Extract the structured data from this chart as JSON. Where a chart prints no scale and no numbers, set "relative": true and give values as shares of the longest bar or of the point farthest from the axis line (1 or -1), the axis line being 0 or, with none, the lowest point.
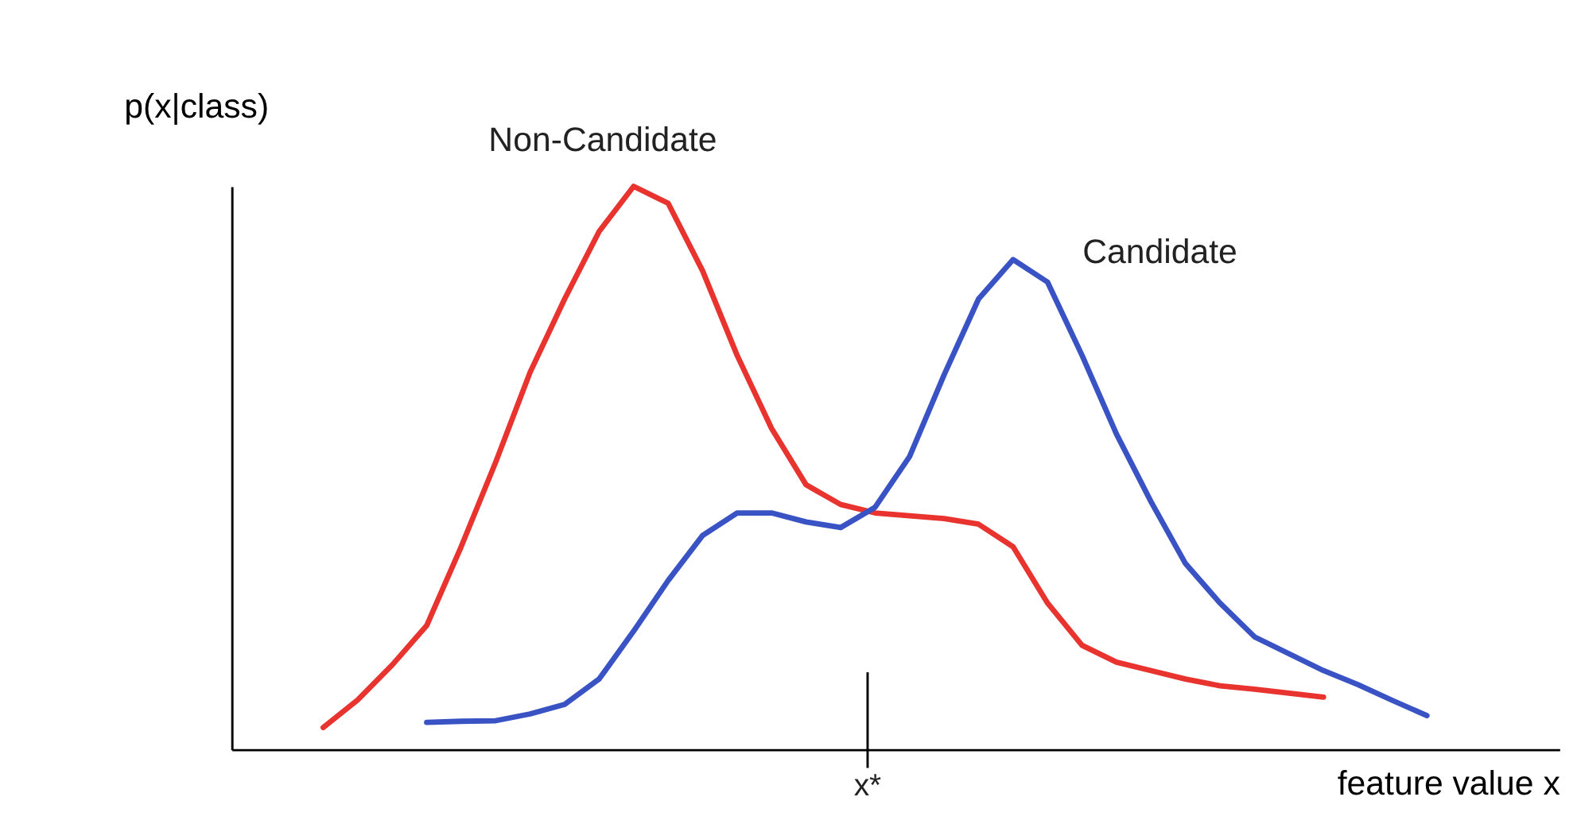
{
  "chart_data": {
    "type": "line",
    "relative": true,
    "xlabel": "feature value x",
    "ylabel": "p(x|class)",
    "categories": [
      null,
      null,
      null,
      null,
      null,
      null,
      null,
      null,
      null,
      null,
      null,
      null,
      null,
      null,
      null,
      null,
      null,
      null,
      null,
      null,
      null,
      null,
      null,
      null,
      null,
      null,
      null,
      null,
      null,
      null,
      null,
      null,
      null
    ],
    "annotations": [
      "x*"
    ],
    "tick_labels": false,
    "grid": false,
    "legend": false,
    "marker": "none",
    "line_style": "solid",
    "series": [
      {
        "name": "Non-Candidate",
        "color": "#e8332f",
        "values": [
          0.039,
          0.088,
          0.15,
          0.22,
          0.36,
          0.51,
          0.67,
          0.8,
          0.92,
          1,
          0.97,
          0.85,
          0.7,
          0.57,
          0.47,
          0.435,
          0.42,
          0.415,
          0.41,
          0.4,
          0.36,
          0.26,
          0.185,
          0.155,
          0.14,
          0.125,
          0.113,
          0.107,
          0.1,
          0.093,
          null,
          null,
          null
        ]
      },
      {
        "name": "Candidate",
        "color": "#3a53c4",
        "values": [
          null,
          null,
          null,
          0.048,
          0.05,
          0.051,
          0.063,
          0.08,
          0.125,
          0.21,
          0.3,
          0.38,
          0.42,
          0.42,
          0.404,
          0.394,
          0.43,
          0.52,
          0.665,
          0.8,
          0.87,
          0.83,
          0.7,
          0.56,
          0.44,
          0.33,
          0.26,
          0.2,
          0.17,
          0.14,
          0.115,
          0.087,
          0.06
        ]
      }
    ]
  }
}
